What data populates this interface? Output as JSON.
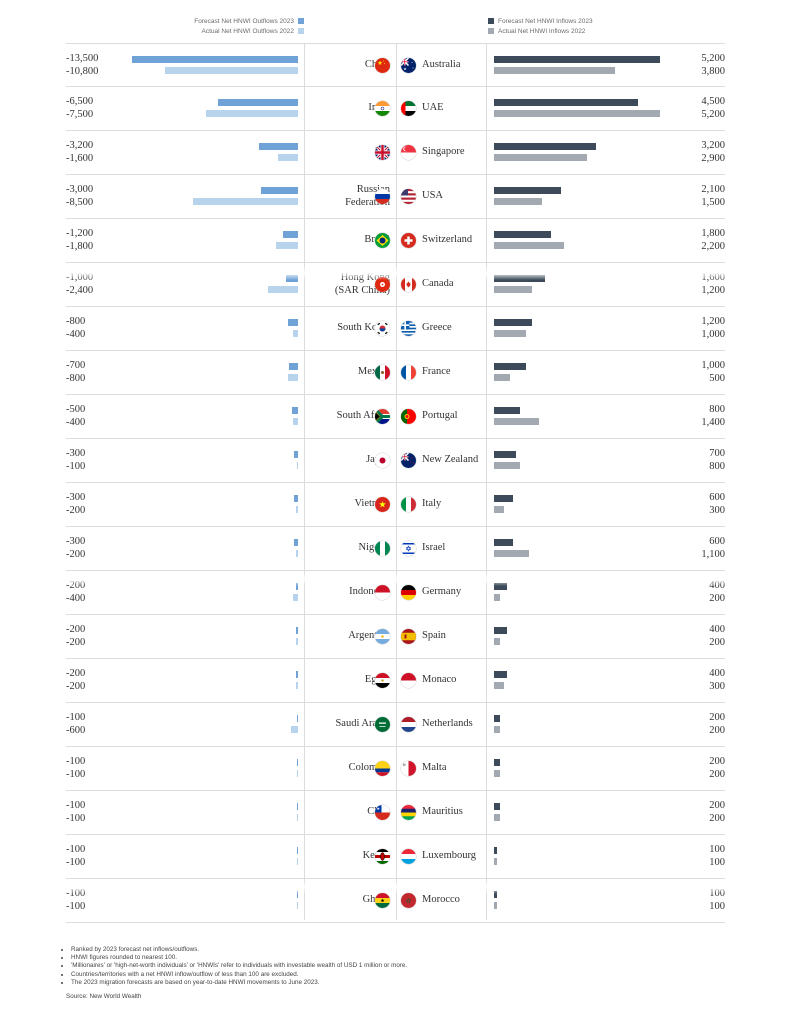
{
  "legend": {
    "outflow_forecast": "Forecast Net HNWI Outflows 2023",
    "outflow_actual": "Actual Net HNWI Outflows 2022",
    "inflow_forecast": "Forecast Net HNWI Inflows 2023",
    "inflow_actual": "Actual Net HNWI Inflows 2022"
  },
  "colors": {
    "outflow_forecast": "#6fa3d8",
    "outflow_actual": "#b8d3ec",
    "inflow_forecast": "#3d4a5a",
    "inflow_actual": "#a3a9b0"
  },
  "chart_data": {
    "type": "bar",
    "outflows": {
      "countries": [
        "China",
        "India",
        "UK",
        "Russian Federation",
        "Brazil",
        "Hong Kong (SAR China)",
        "South Korea",
        "Mexico",
        "South Africa",
        "Japan",
        "Vietnam",
        "Nigeria",
        "Indonesia",
        "Argentina",
        "Egypt",
        "Saudi Arabia",
        "Colombia",
        "Chile",
        "Kenya",
        "Ghana"
      ],
      "labels": [
        [
          "China"
        ],
        [
          "India"
        ],
        [
          "UK"
        ],
        [
          "Russian",
          "Federation"
        ],
        [
          "Brazil"
        ],
        [
          "Hong Kong",
          "(SAR China)"
        ],
        [
          "South Korea"
        ],
        [
          "Mexico"
        ],
        [
          "South Africa"
        ],
        [
          "Japan"
        ],
        [
          "Vietnam"
        ],
        [
          "Nigeria"
        ],
        [
          "Indonesia"
        ],
        [
          "Argentina"
        ],
        [
          "Egypt"
        ],
        [
          "Saudi Arabia"
        ],
        [
          "Colombia"
        ],
        [
          "Chile"
        ],
        [
          "Kenya"
        ],
        [
          "Ghana"
        ]
      ],
      "flags": [
        "china-flag-icon",
        "india-flag-icon",
        "uk-flag-icon",
        "russia-flag-icon",
        "brazil-flag-icon",
        "hong-kong-flag-icon",
        "south-korea-flag-icon",
        "mexico-flag-icon",
        "south-africa-flag-icon",
        "japan-flag-icon",
        "vietnam-flag-icon",
        "nigeria-flag-icon",
        "indonesia-flag-icon",
        "argentina-flag-icon",
        "egypt-flag-icon",
        "saudi-arabia-flag-icon",
        "colombia-flag-icon",
        "chile-flag-icon",
        "kenya-flag-icon",
        "ghana-flag-icon"
      ],
      "series": [
        {
          "name": "Forecast Net HNWI Outflows 2023",
          "values": [
            -13500,
            -6500,
            -3200,
            -3000,
            -1200,
            -1000,
            -800,
            -700,
            -500,
            -300,
            -300,
            -300,
            -200,
            -200,
            -200,
            -100,
            -100,
            -100,
            -100,
            -100
          ]
        },
        {
          "name": "Actual Net HNWI Outflows 2022",
          "values": [
            -10800,
            -7500,
            -1600,
            -8500,
            -1800,
            -2400,
            -400,
            -800,
            -400,
            -100,
            -200,
            -200,
            -400,
            -200,
            -200,
            -600,
            -100,
            -100,
            -100,
            -100
          ]
        }
      ],
      "display": [
        [
          "-13,500",
          "-6,500",
          "-3,200",
          "-3,000",
          "-1,200",
          "-1,000",
          "-800",
          "-700",
          "-500",
          "-300",
          "-300",
          "-300",
          "-200",
          "-200",
          "-200",
          "-100",
          "-100",
          "-100",
          "-100",
          "-100"
        ],
        [
          "-10,800",
          "-7,500",
          "-1,600",
          "-8,500",
          "-1,800",
          "-2,400",
          "-400",
          "-800",
          "-400",
          "-100",
          "-200",
          "-200",
          "-400",
          "-200",
          "-200",
          "-600",
          "-100",
          "-100",
          "-100",
          "-100"
        ]
      ]
    },
    "inflows": {
      "countries": [
        "Australia",
        "UAE",
        "Singapore",
        "USA",
        "Switzerland",
        "Canada",
        "Greece",
        "France",
        "Portugal",
        "New Zealand",
        "Italy",
        "Israel",
        "Germany",
        "Spain",
        "Monaco",
        "Netherlands",
        "Malta",
        "Mauritius",
        "Luxembourg",
        "Morocco"
      ],
      "flags": [
        "australia-flag-icon",
        "uae-flag-icon",
        "singapore-flag-icon",
        "usa-flag-icon",
        "switzerland-flag-icon",
        "canada-flag-icon",
        "greece-flag-icon",
        "france-flag-icon",
        "portugal-flag-icon",
        "new-zealand-flag-icon",
        "italy-flag-icon",
        "israel-flag-icon",
        "germany-flag-icon",
        "spain-flag-icon",
        "monaco-flag-icon",
        "netherlands-flag-icon",
        "malta-flag-icon",
        "mauritius-flag-icon",
        "luxembourg-flag-icon",
        "morocco-flag-icon"
      ],
      "series": [
        {
          "name": "Forecast Net HNWI Inflows 2023",
          "values": [
            5200,
            4500,
            3200,
            2100,
            1800,
            1600,
            1200,
            1000,
            800,
            700,
            600,
            600,
            400,
            400,
            400,
            200,
            200,
            200,
            100,
            100
          ]
        },
        {
          "name": "Actual Net HNWI Inflows 2022",
          "values": [
            3800,
            5200,
            2900,
            1500,
            2200,
            1200,
            1000,
            500,
            1400,
            800,
            300,
            1100,
            200,
            200,
            300,
            200,
            200,
            200,
            100,
            100
          ]
        }
      ],
      "display": [
        [
          "5,200",
          "4,500",
          "3,200",
          "2,100",
          "1,800",
          "1,600",
          "1,200",
          "1,000",
          "800",
          "700",
          "600",
          "600",
          "400",
          "400",
          "400",
          "200",
          "200",
          "200",
          "100",
          "100"
        ],
        [
          "3,800",
          "5,200",
          "2,900",
          "1,500",
          "2,200",
          "1,200",
          "1,000",
          "500",
          "1,400",
          "800",
          "300",
          "1,100",
          "200",
          "200",
          "300",
          "200",
          "200",
          "200",
          "100",
          "100"
        ]
      ]
    }
  },
  "notes": [
    "Ranked by 2023 forecast net inflows/outflows.",
    "HNWI figures rounded to nearest 100.",
    "'Millionaires' or 'high-net-worth individuals' or 'HNWIs' refer to individuals with investable wealth of USD 1 million or more.",
    "Countries/territories with a net HNWI inflow/outflow of less than 100 are excluded.",
    "The 2023 migration forecasts are based on year-to-date HNWI movements to June 2023."
  ],
  "source": "Source: New World Wealth"
}
